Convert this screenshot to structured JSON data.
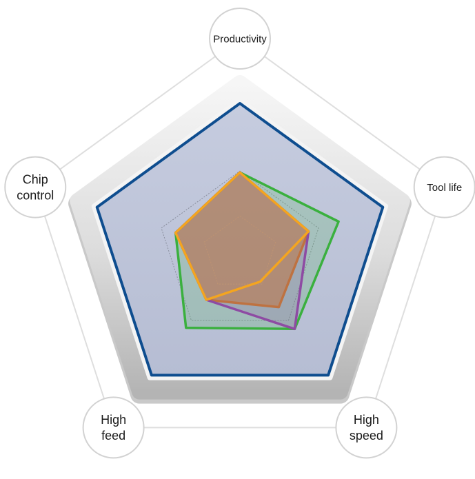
{
  "chart_data": {
    "type": "radar",
    "axes": [
      "Productivity",
      "Tool life",
      "High speed",
      "High feed",
      "Chip control"
    ],
    "axis_label_lines": [
      [
        "Productivity"
      ],
      [
        "Tool life"
      ],
      [
        "High",
        "speed"
      ],
      [
        "High",
        "feed"
      ],
      [
        "Chip",
        "control"
      ]
    ],
    "rlim": [
      0,
      10
    ],
    "max_value": 10,
    "grid_levels": [
      2.5,
      5.5
    ],
    "series": [
      {
        "color": "#e8702a",
        "values": [
          5.4,
          4.8,
          4.4,
          3.8,
          4.5
        ]
      },
      {
        "color": "#3ab03e",
        "values": [
          5.4,
          6.9,
          6.2,
          6.1,
          4.5
        ]
      },
      {
        "color": "#8e4ba3",
        "values": [
          5.4,
          4.8,
          6.2,
          3.8,
          4.5
        ]
      },
      {
        "color": "#f4a51f",
        "values": [
          5.4,
          4.8,
          2.3,
          3.8,
          4.5
        ]
      }
    ],
    "colors": {
      "outline": "#0e4d8f",
      "area": "#bfc6da",
      "bevel_light": "#f2f2f2",
      "bevel_dark": "#b8b8b8",
      "label_ring": "#d2d2d2",
      "connector": "#dedede"
    }
  }
}
